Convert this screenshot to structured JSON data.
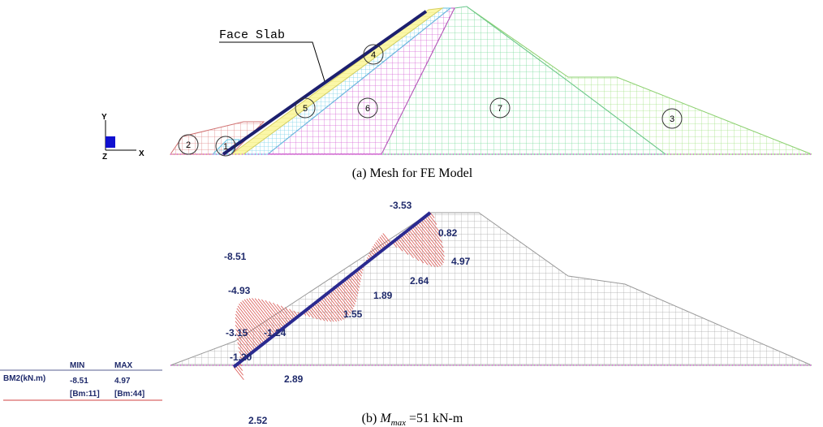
{
  "figure_a": {
    "face_slab_label": "Face Slab",
    "zones": [
      "1",
      "2",
      "3",
      "4",
      "5",
      "6",
      "7"
    ],
    "axes": {
      "y": "Y",
      "z": "Z",
      "x": "X"
    },
    "caption": "(a) Mesh for FE Model"
  },
  "figure_b": {
    "moment_labels": [
      "-3.53",
      "0.82",
      "-8.51",
      "4.97",
      "2.64",
      "1.89",
      "-4.93",
      "1.55",
      "-3.15",
      "-1.24",
      "-1.20",
      "2.89",
      "2.52"
    ],
    "legend": {
      "min_header": "MIN",
      "max_header": "MAX",
      "quantity": "BM2(kN.m)",
      "min_value": "-8.51",
      "max_value": "4.97",
      "min_beam": "[Bm:11]",
      "max_beam": "[Bm:44]"
    },
    "caption": {
      "prefix": "(b) ",
      "symbol": "M",
      "subscript": "max",
      "suffix": " =51 kN-m"
    }
  }
}
